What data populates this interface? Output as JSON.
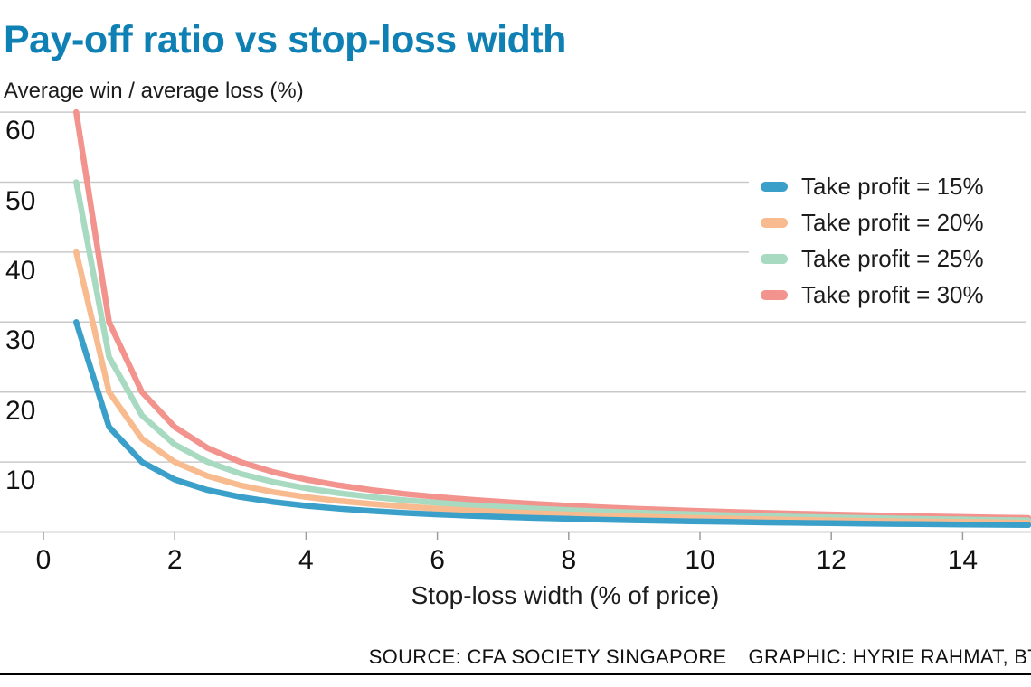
{
  "header": {
    "title": "Pay-off ratio vs stop-loss width",
    "subtitle": "Average win / average loss (%)"
  },
  "footer": {
    "source": "SOURCE: CFA SOCIETY SINGAPORE",
    "graphic": "GRAPHIC: HYRIE RAHMAT, BT"
  },
  "colors": {
    "title": "#0F80B4",
    "grid": "#C9C9C9",
    "axis": "#9C9C9C",
    "text": "#161616",
    "background": "#FFFFFF"
  },
  "chart_data": {
    "type": "line",
    "title": "Pay-off ratio vs stop-loss width",
    "xlabel": "Stop-loss width (% of price)",
    "ylabel": "Average win / average loss (%)",
    "xlim": [
      0,
      15.1
    ],
    "ylim": [
      0,
      61
    ],
    "xticks": [
      0,
      2,
      4,
      6,
      8,
      10,
      12,
      14
    ],
    "yticks": [
      10,
      20,
      30,
      40,
      50,
      60
    ],
    "grid": "horizontal-only",
    "legend_position": "upper-right",
    "x": [
      0.5,
      1,
      1.5,
      2,
      2.5,
      3,
      3.5,
      4,
      4.5,
      5,
      5.5,
      6,
      6.5,
      7,
      7.5,
      8,
      8.5,
      9,
      9.5,
      10,
      10.5,
      11,
      11.5,
      12,
      12.5,
      13,
      13.5,
      14,
      14.5,
      15
    ],
    "series": [
      {
        "name": "Take profit = 15%",
        "take_profit_pct": 15,
        "color": "#3BA0C9",
        "values": [
          30,
          15,
          10,
          7.5,
          6,
          5,
          4.29,
          3.75,
          3.33,
          3,
          2.73,
          2.5,
          2.31,
          2.14,
          2,
          1.88,
          1.76,
          1.67,
          1.58,
          1.5,
          1.43,
          1.36,
          1.3,
          1.25,
          1.2,
          1.15,
          1.11,
          1.07,
          1.03,
          1
        ]
      },
      {
        "name": "Take profit = 20%",
        "take_profit_pct": 20,
        "color": "#F8BB8F",
        "values": [
          40,
          20,
          13.33,
          10,
          8,
          6.67,
          5.71,
          5,
          4.44,
          4,
          3.64,
          3.33,
          3.08,
          2.86,
          2.67,
          2.5,
          2.35,
          2.22,
          2.11,
          2,
          1.9,
          1.82,
          1.74,
          1.67,
          1.6,
          1.54,
          1.48,
          1.43,
          1.38,
          1.33
        ]
      },
      {
        "name": "Take profit = 25%",
        "take_profit_pct": 25,
        "color": "#A7DAC1",
        "values": [
          50,
          25,
          16.67,
          12.5,
          10,
          8.33,
          7.14,
          6.25,
          5.56,
          5,
          4.55,
          4.17,
          3.85,
          3.57,
          3.33,
          3.13,
          2.94,
          2.78,
          2.63,
          2.5,
          2.38,
          2.27,
          2.17,
          2.08,
          2,
          1.92,
          1.85,
          1.79,
          1.72,
          1.67
        ]
      },
      {
        "name": "Take profit = 30%",
        "take_profit_pct": 30,
        "color": "#F2938E",
        "values": [
          60,
          30,
          20,
          15,
          12,
          10,
          8.57,
          7.5,
          6.67,
          6,
          5.45,
          5,
          4.62,
          4.29,
          4,
          3.75,
          3.53,
          3.33,
          3.16,
          3,
          2.86,
          2.73,
          2.61,
          2.5,
          2.4,
          2.31,
          2.22,
          2.14,
          2.07,
          2
        ]
      }
    ]
  }
}
